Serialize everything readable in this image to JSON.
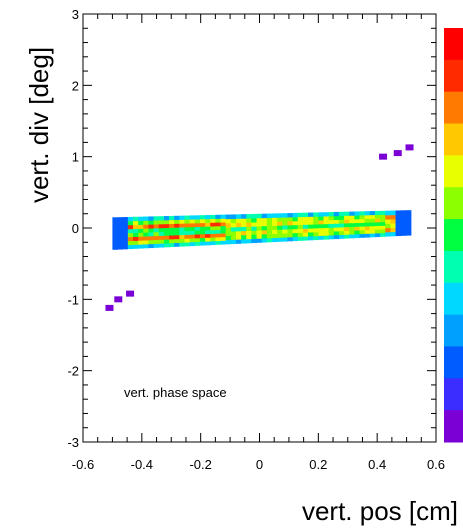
{
  "chart_data": {
    "type": "heatmap",
    "title": "",
    "xlabel": "vert. pos [cm]",
    "ylabel": "vert. div [deg]",
    "annotation": "vert. phase space",
    "xlim": [
      -0.6,
      0.6
    ],
    "ylim": [
      -3,
      3
    ],
    "xticks": [
      "-0.6",
      "-0.4",
      "-0.2",
      "0",
      "0.2",
      "0.4",
      "0.6"
    ],
    "yticks": [
      "-3",
      "-2",
      "-1",
      "0",
      "1",
      "2",
      "3"
    ],
    "colorscale": [
      "#7a00d6",
      "#3b2cff",
      "#005cff",
      "#00a0ff",
      "#00d8ff",
      "#00ffb0",
      "#00ff40",
      "#8cff00",
      "#e8ff00",
      "#ffc800",
      "#ff7a00",
      "#ff2a00",
      "#ff0000"
    ],
    "core": {
      "x_start": -0.5,
      "x_end": 0.5,
      "bottom_left": -0.3,
      "bottom_right": -0.1,
      "top_left": 0.15,
      "top_right": 0.25
    },
    "outliers": [
      {
        "x": 0.51,
        "y": 1.13
      },
      {
        "x": 0.47,
        "y": 1.05
      },
      {
        "x": 0.42,
        "y": 1.0
      },
      {
        "x": -0.44,
        "y": -0.92
      },
      {
        "x": -0.48,
        "y": -1.0
      },
      {
        "x": -0.51,
        "y": -1.12
      }
    ]
  }
}
